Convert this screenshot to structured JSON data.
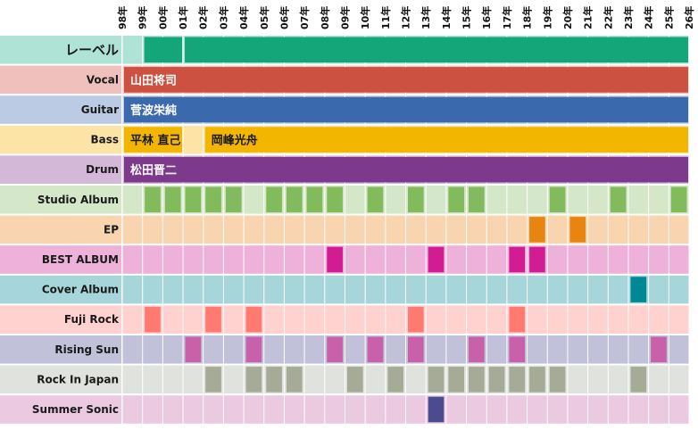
{
  "chart_data": {
    "type": "heatmap",
    "title": "",
    "subtitle": "",
    "xlabel": "",
    "ylabel": "",
    "grid": true,
    "legend": "none",
    "years": [
      "98年",
      "99年",
      "00年",
      "01年",
      "02年",
      "03年",
      "04年",
      "05年",
      "06年",
      "07年",
      "08年",
      "09年",
      "10年",
      "11年",
      "12年",
      "13年",
      "14年",
      "15年",
      "16年",
      "17年",
      "18年",
      "19年",
      "20年",
      "21年",
      "22年",
      "23年",
      "24年",
      "25年",
      "26年"
    ],
    "rows": [
      {
        "label": "レーベル",
        "kind": "span",
        "bg": "#aee3d5",
        "color": "#14a678",
        "text_color": "#ffffff",
        "spans": [
          {
            "start": "99年",
            "end": "01年",
            "text": ""
          },
          {
            "start": "01年",
            "end": "26年",
            "text": ""
          }
        ]
      },
      {
        "label": "Vocal",
        "kind": "span",
        "bg": "#efc0bc",
        "color": "#cc5140",
        "text_color": "#ffffff",
        "spans": [
          {
            "start": "98年",
            "end": "26年",
            "text": "山田将司"
          }
        ]
      },
      {
        "label": "Guitar",
        "kind": "span",
        "bg": "#bbcbe3",
        "color": "#3b69ae",
        "text_color": "#ffffff",
        "spans": [
          {
            "start": "98年",
            "end": "26年",
            "text": "菅波栄純"
          }
        ]
      },
      {
        "label": "Bass",
        "kind": "span",
        "bg": "#fce4a6",
        "color": "#f2b600",
        "text_color": "#1a1a1a",
        "spans": [
          {
            "start": "98年",
            "end": "01年",
            "text": "平林 直己"
          },
          {
            "start": "02年",
            "end": "26年",
            "text": "岡峰光舟"
          }
        ]
      },
      {
        "label": "Drum",
        "kind": "span",
        "bg": "#d4b8d8",
        "color": "#7d3a8c",
        "text_color": "#ffffff",
        "spans": [
          {
            "start": "98年",
            "end": "26年",
            "text": "松田晋二"
          }
        ]
      },
      {
        "label": "Studio Album",
        "kind": "event",
        "bg": "#d4e7c8",
        "color": "#82bb5b",
        "years": [
          "99年",
          "00年",
          "01年",
          "02年",
          "03年",
          "05年",
          "06年",
          "07年",
          "08年",
          "10年",
          "12年",
          "14年",
          "15年",
          "19年",
          "22年",
          "25年"
        ]
      },
      {
        "label": "EP",
        "kind": "event",
        "bg": "#f8d5ae",
        "color": "#e88410",
        "years": [
          "18年",
          "20年"
        ]
      },
      {
        "label": "BEST ALBUM",
        "kind": "event",
        "bg": "#eeb1d9",
        "color": "#d11c94",
        "years": [
          "08年",
          "13年",
          "17年",
          "18年"
        ]
      },
      {
        "label": "Cover Album",
        "kind": "event",
        "bg": "#a7d6da",
        "color": "#008994",
        "years": [
          "23年"
        ]
      },
      {
        "label": "Fuji Rock",
        "kind": "event",
        "bg": "#ffd1cf",
        "color": "#ff7b72",
        "years": [
          "99年",
          "02年",
          "04年",
          "12年",
          "17年"
        ]
      },
      {
        "label": "Rising Sun",
        "kind": "event",
        "bg": "#c1c1da",
        "color": "#c861a9",
        "years": [
          "01年",
          "04年",
          "08年",
          "10年",
          "12年",
          "15年",
          "17年",
          "24年"
        ]
      },
      {
        "label": "Rock In Japan",
        "kind": "event",
        "bg": "#e0e3dd",
        "color": "#a6ab98",
        "years": [
          "02年",
          "04年",
          "05年",
          "06年",
          "09年",
          "11年",
          "13年",
          "14年",
          "15年",
          "16年",
          "17年",
          "18年",
          "19年",
          "23年"
        ]
      },
      {
        "label": "Summer Sonic",
        "kind": "event",
        "bg": "#ebc9e1",
        "color": "#4b4b8f",
        "years": [
          "13年"
        ]
      }
    ]
  }
}
